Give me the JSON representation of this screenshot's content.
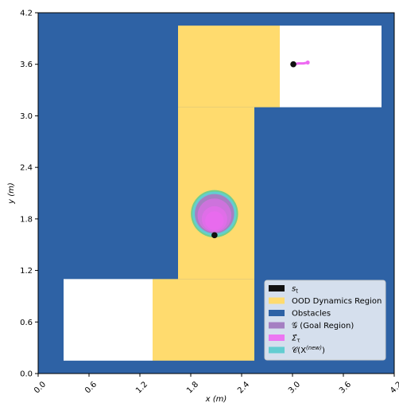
{
  "chart_data": {
    "type": "region-map",
    "xlabel": "x (m)",
    "ylabel": "y (m)",
    "xlim": [
      0,
      4.2
    ],
    "ylim": [
      0,
      4.2
    ],
    "xticks": [
      "0.0",
      "0.6",
      "1.2",
      "1.8",
      "2.4",
      "3.0",
      "3.6",
      "4.2"
    ],
    "yticks": [
      "0.0",
      "0.6",
      "1.2",
      "1.8",
      "2.4",
      "3.0",
      "3.6",
      "4.2"
    ],
    "tick_values": [
      0,
      0.6,
      1.2,
      1.8,
      2.4,
      3.0,
      3.6,
      4.2
    ],
    "colors": {
      "obstacles": "#2e62a5",
      "free": "#ffffff",
      "ood": "#ffdb6e",
      "goal": "#a57fc2",
      "sigma": "#ee6af2",
      "cnew": "#63cdd1",
      "goal_ring": "#74cf8c",
      "state": "#111111"
    },
    "regions": {
      "obstacles": [
        [
          0,
          0,
          4.2,
          4.2
        ]
      ],
      "free_space": [
        [
          0.3,
          0.15,
          1.35,
          1.1
        ],
        [
          2.85,
          3.1,
          4.05,
          4.05
        ]
      ],
      "ood_dynamics": [
        [
          1.35,
          0.15,
          2.55,
          1.1
        ],
        [
          1.65,
          1.1,
          2.55,
          3.1
        ],
        [
          1.65,
          3.1,
          2.85,
          4.05
        ]
      ]
    },
    "goal_region": {
      "center": [
        2.08,
        1.86
      ],
      "radius": 0.26
    },
    "sigma_tau": [
      {
        "center": [
          2.08,
          1.84
        ],
        "radius": 0.2
      },
      {
        "center": [
          2.08,
          1.8
        ],
        "radius": 0.15
      },
      {
        "center": [
          2.08,
          1.78
        ],
        "radius": 0.11
      }
    ],
    "states": [
      {
        "x": 2.08,
        "y": 1.61
      },
      {
        "x": 3.01,
        "y": 3.6
      }
    ],
    "trajectory": [
      [
        3.01,
        3.6
      ],
      [
        3.07,
        3.61
      ],
      [
        3.13,
        3.61
      ],
      [
        3.18,
        3.62
      ]
    ],
    "legend": {
      "placement": "lower-right",
      "entries": [
        {
          "key": "state",
          "label": "s",
          "sub": "t"
        },
        {
          "key": "ood",
          "label": "OOD Dynamics Region"
        },
        {
          "key": "obstacles",
          "label": "Obstacles"
        },
        {
          "key": "goal",
          "label": "𝒢 (Goal Region)"
        },
        {
          "key": "sigma",
          "label": "Σ̂",
          "sub": "τ"
        },
        {
          "key": "cnew",
          "label": "𝒞(X",
          "sup": "(new)",
          "tail": ")"
        }
      ]
    }
  }
}
